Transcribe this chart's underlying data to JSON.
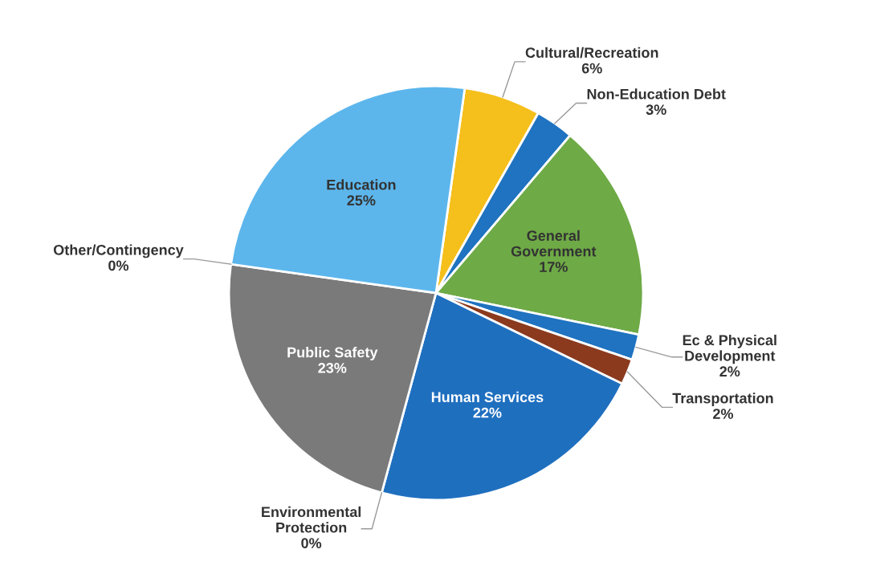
{
  "chart_data": {
    "type": "pie",
    "categories": [
      "Cultural/Recreation",
      "Non-Education Debt",
      "General Government",
      "Ec & Physical Development",
      "Transportation",
      "Human Services",
      "Environmental Protection",
      "Public Safety",
      "Other/Contingency",
      "Education"
    ],
    "values": [
      6,
      3,
      17,
      2,
      2,
      22,
      0,
      23,
      0,
      25
    ],
    "value_labels": [
      "6%",
      "3%",
      "17%",
      "2%",
      "2%",
      "22%",
      "0%",
      "23%",
      "0%",
      "25%"
    ],
    "colors": [
      "#f5bf1c",
      "#1f73c0",
      "#6eaa46",
      "#1f73c0",
      "#8b3a1e",
      "#1f6fbf",
      "#7a7a7a",
      "#7a7a7a",
      "#3b7d23",
      "#5cb6ec"
    ],
    "legend": false
  }
}
